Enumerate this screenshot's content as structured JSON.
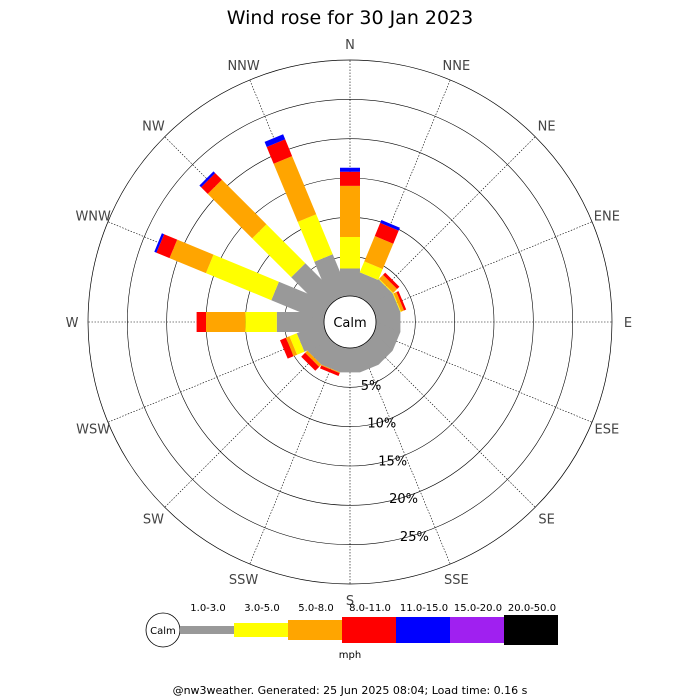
{
  "chart_data": {
    "type": "windrose",
    "title": "Wind rose for 30 Jan 2023",
    "calm_label": "Calm",
    "directions": [
      "N",
      "NNE",
      "NE",
      "ENE",
      "E",
      "ESE",
      "SE",
      "SSE",
      "S",
      "SSW",
      "SW",
      "WSW",
      "W",
      "WNW",
      "NW",
      "NNW"
    ],
    "radial_ticks": [
      "5%",
      "10%",
      "15%",
      "20%",
      "25%"
    ],
    "radial_tick_values": [
      5,
      10,
      15,
      20,
      25
    ],
    "rmax": 30,
    "units": "mph",
    "bins": [
      {
        "label": "1.0-3.0",
        "color": "#999999"
      },
      {
        "label": "3.0-5.0",
        "color": "#ffff00"
      },
      {
        "label": "5.0-8.0",
        "color": "#ffa500"
      },
      {
        "label": "8.0-11.0",
        "color": "#ff0000"
      },
      {
        "label": "11.0-15.0",
        "color": "#0000ff"
      },
      {
        "label": "15.0-20.0",
        "color": "#a020f0"
      },
      {
        "label": "20.0-50.0",
        "color": "#000000"
      }
    ],
    "series": [
      {
        "direction": "N",
        "cumulative": [
          3.5,
          7.5,
          14.0,
          15.8,
          16.3,
          16.3,
          16.3
        ]
      },
      {
        "direction": "NNE",
        "cumulative": [
          3.0,
          4.5,
          8.0,
          9.8,
          10.2,
          10.2,
          10.2
        ]
      },
      {
        "direction": "NE",
        "cumulative": [
          3.1,
          3.2,
          3.9,
          4.3,
          4.3,
          4.3,
          4.3
        ]
      },
      {
        "direction": "ENE",
        "cumulative": [
          3.1,
          3.2,
          3.6,
          3.9,
          3.9,
          3.9,
          3.9
        ]
      },
      {
        "direction": "E",
        "cumulative": [
          3.1,
          3.1,
          3.1,
          3.1,
          3.1,
          3.1,
          3.1
        ]
      },
      {
        "direction": "ESE",
        "cumulative": [
          3.1,
          3.1,
          3.1,
          3.1,
          3.1,
          3.1,
          3.1
        ]
      },
      {
        "direction": "SE",
        "cumulative": [
          3.1,
          3.1,
          3.1,
          3.1,
          3.1,
          3.1,
          3.1
        ]
      },
      {
        "direction": "SSE",
        "cumulative": [
          3.1,
          3.1,
          3.1,
          3.1,
          3.1,
          3.1,
          3.1
        ]
      },
      {
        "direction": "S",
        "cumulative": [
          3.1,
          3.1,
          3.1,
          3.1,
          3.1,
          3.1,
          3.1
        ]
      },
      {
        "direction": "SSW",
        "cumulative": [
          3.1,
          3.1,
          3.2,
          3.6,
          3.6,
          3.6,
          3.6
        ]
      },
      {
        "direction": "SW",
        "cumulative": [
          3.1,
          3.1,
          3.5,
          4.2,
          4.2,
          4.2,
          4.2
        ]
      },
      {
        "direction": "WSW",
        "cumulative": [
          3.5,
          4.5,
          5.0,
          5.8,
          5.8,
          5.8,
          5.8
        ]
      },
      {
        "direction": "W",
        "cumulative": [
          6.0,
          10.0,
          15.0,
          16.2,
          16.2,
          16.2,
          16.2
        ]
      },
      {
        "direction": "WNW",
        "cumulative": [
          7.0,
          16.0,
          21.0,
          22.8,
          23.1,
          23.1,
          23.1
        ]
      },
      {
        "direction": "NW",
        "cumulative": [
          6.0,
          13.0,
          21.0,
          22.2,
          22.5,
          22.5,
          22.5
        ]
      },
      {
        "direction": "NNW",
        "cumulative": [
          5.5,
          11.0,
          19.0,
          21.3,
          22.0,
          22.0,
          22.0
        ]
      }
    ]
  },
  "footer": "@nw3weather. Generated: 25 Jun 2025 08:04; Load time: 0.16 s"
}
